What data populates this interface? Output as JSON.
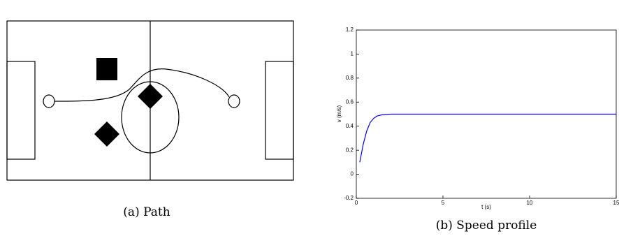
{
  "captions": [
    "(a) Path",
    "(b) Speed profile"
  ],
  "chart_data": {
    "type": "line",
    "xlabel": "t (s)",
    "ylabel": "v (m/s)",
    "x": [
      0.2,
      0.4,
      0.6,
      0.8,
      1.0,
      1.2,
      1.5,
      2,
      3,
      15
    ],
    "series": [
      {
        "color": "#0000ff",
        "values": [
          0.1,
          0.25,
          0.36,
          0.43,
          0.465,
          0.485,
          0.495,
          0.5,
          0.5,
          0.5
        ]
      }
    ],
    "xlim": [
      0,
      15
    ],
    "xticks": [
      0,
      5,
      10,
      15
    ],
    "ylim": [
      -0.2,
      1.2
    ],
    "yticks": [
      -0.2,
      0,
      0.2,
      0.4,
      0.6,
      0.8,
      1,
      1.2
    ]
  }
}
